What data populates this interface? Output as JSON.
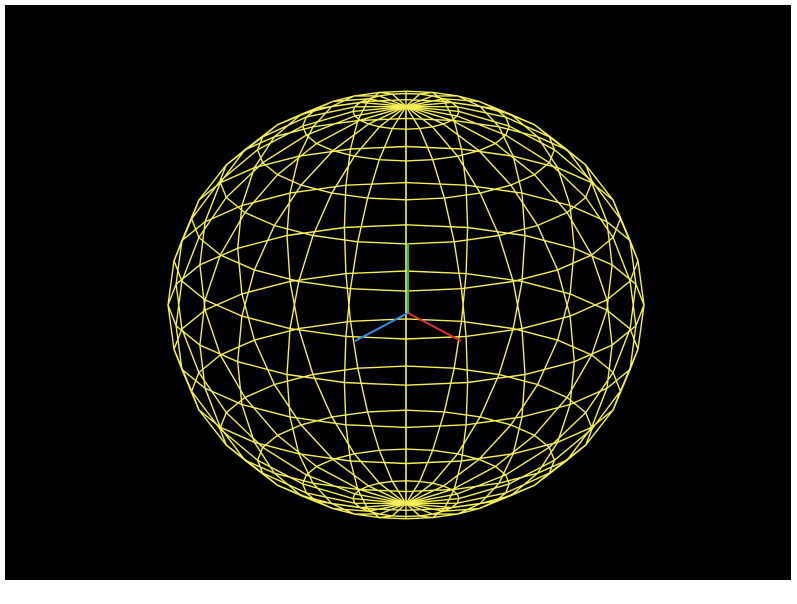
{
  "scene": {
    "background_color": "#000000",
    "frame_color": "#ffffff",
    "object": {
      "type": "wireframe-sphere",
      "color": "#f4ee58",
      "latitude_bands": 14,
      "longitude_segments": 24,
      "view_tilt_degrees": 22
    },
    "axes": {
      "x_color": "#e03030",
      "y_color": "#22c043",
      "z_color": "#2f8ff0"
    }
  }
}
